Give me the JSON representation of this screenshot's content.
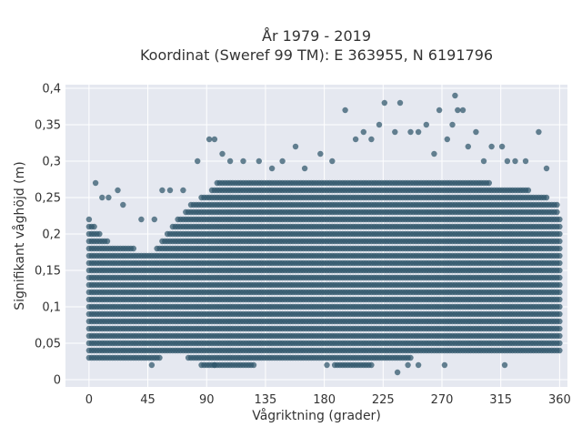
{
  "chart_data": {
    "type": "scatter",
    "title": "År 1979 - 2019",
    "subtitle": "Koordinat (Sweref 99 TM): E 363955, N 6191796",
    "xlabel": "Vågriktning (grader)",
    "ylabel": "Signifikant våghöjd (m)",
    "xlim": [
      -18,
      366
    ],
    "ylim": [
      -0.01,
      0.405
    ],
    "xticks": [
      0,
      45,
      90,
      135,
      180,
      225,
      270,
      315,
      360
    ],
    "xtick_labels": [
      "0",
      "45",
      "90",
      "135",
      "180",
      "225",
      "270",
      "315",
      "360"
    ],
    "yticks": [
      0,
      0.05,
      0.1,
      0.15,
      0.2,
      0.25,
      0.3,
      0.35,
      0.4
    ],
    "ytick_labels": [
      "0",
      "0,05",
      "0,1",
      "0,15",
      "0,2",
      "0,25",
      "0,3",
      "0,35",
      "0,4"
    ],
    "grid": true,
    "marker_color": "#2e5569",
    "plot_background": "#e5e8f0",
    "envelope": {
      "x": [
        0,
        10,
        20,
        30,
        40,
        45,
        50,
        60,
        70,
        80,
        90,
        100,
        110,
        120,
        135,
        150,
        165,
        180,
        195,
        210,
        225,
        240,
        255,
        270,
        285,
        300,
        315,
        330,
        345,
        355,
        360
      ],
      "y_min": [
        0.03,
        0.03,
        0.03,
        0.03,
        0.03,
        0.03,
        0.03,
        0.04,
        0.04,
        0.03,
        0.02,
        0.02,
        0.02,
        0.02,
        0.03,
        0.03,
        0.03,
        0.03,
        0.02,
        0.02,
        0.03,
        0.03,
        0.04,
        0.04,
        0.04,
        0.04,
        0.04,
        0.04,
        0.04,
        0.04,
        0.04
      ],
      "y_max": [
        0.22,
        0.19,
        0.18,
        0.18,
        0.17,
        0.17,
        0.17,
        0.2,
        0.22,
        0.24,
        0.25,
        0.27,
        0.27,
        0.27,
        0.27,
        0.27,
        0.27,
        0.27,
        0.27,
        0.27,
        0.27,
        0.27,
        0.27,
        0.27,
        0.27,
        0.27,
        0.26,
        0.26,
        0.25,
        0.24,
        0.22
      ]
    },
    "outliers": {
      "x": [
        5,
        10,
        15,
        22,
        26,
        40,
        50,
        56,
        62,
        72,
        83,
        92,
        96,
        102,
        108,
        118,
        130,
        140,
        148,
        158,
        165,
        177,
        186,
        196,
        204,
        210,
        216,
        222,
        226,
        234,
        238,
        246,
        252,
        258,
        264,
        268,
        274,
        278,
        280,
        282,
        286,
        290,
        296,
        302,
        308,
        316,
        320,
        326,
        334,
        344,
        350,
        358,
        236,
        252,
        48,
        96,
        182,
        244,
        272,
        318
      ],
      "y": [
        0.27,
        0.25,
        0.25,
        0.26,
        0.24,
        0.22,
        0.22,
        0.26,
        0.26,
        0.26,
        0.3,
        0.33,
        0.33,
        0.31,
        0.3,
        0.3,
        0.3,
        0.29,
        0.3,
        0.32,
        0.29,
        0.31,
        0.3,
        0.37,
        0.33,
        0.34,
        0.33,
        0.35,
        0.38,
        0.34,
        0.38,
        0.34,
        0.34,
        0.35,
        0.31,
        0.37,
        0.33,
        0.35,
        0.39,
        0.37,
        0.37,
        0.32,
        0.34,
        0.3,
        0.32,
        0.32,
        0.3,
        0.3,
        0.3,
        0.34,
        0.29,
        0.24,
        0.01,
        0.02,
        0.02,
        0.02,
        0.02,
        0.02,
        0.02,
        0.02
      ]
    }
  }
}
